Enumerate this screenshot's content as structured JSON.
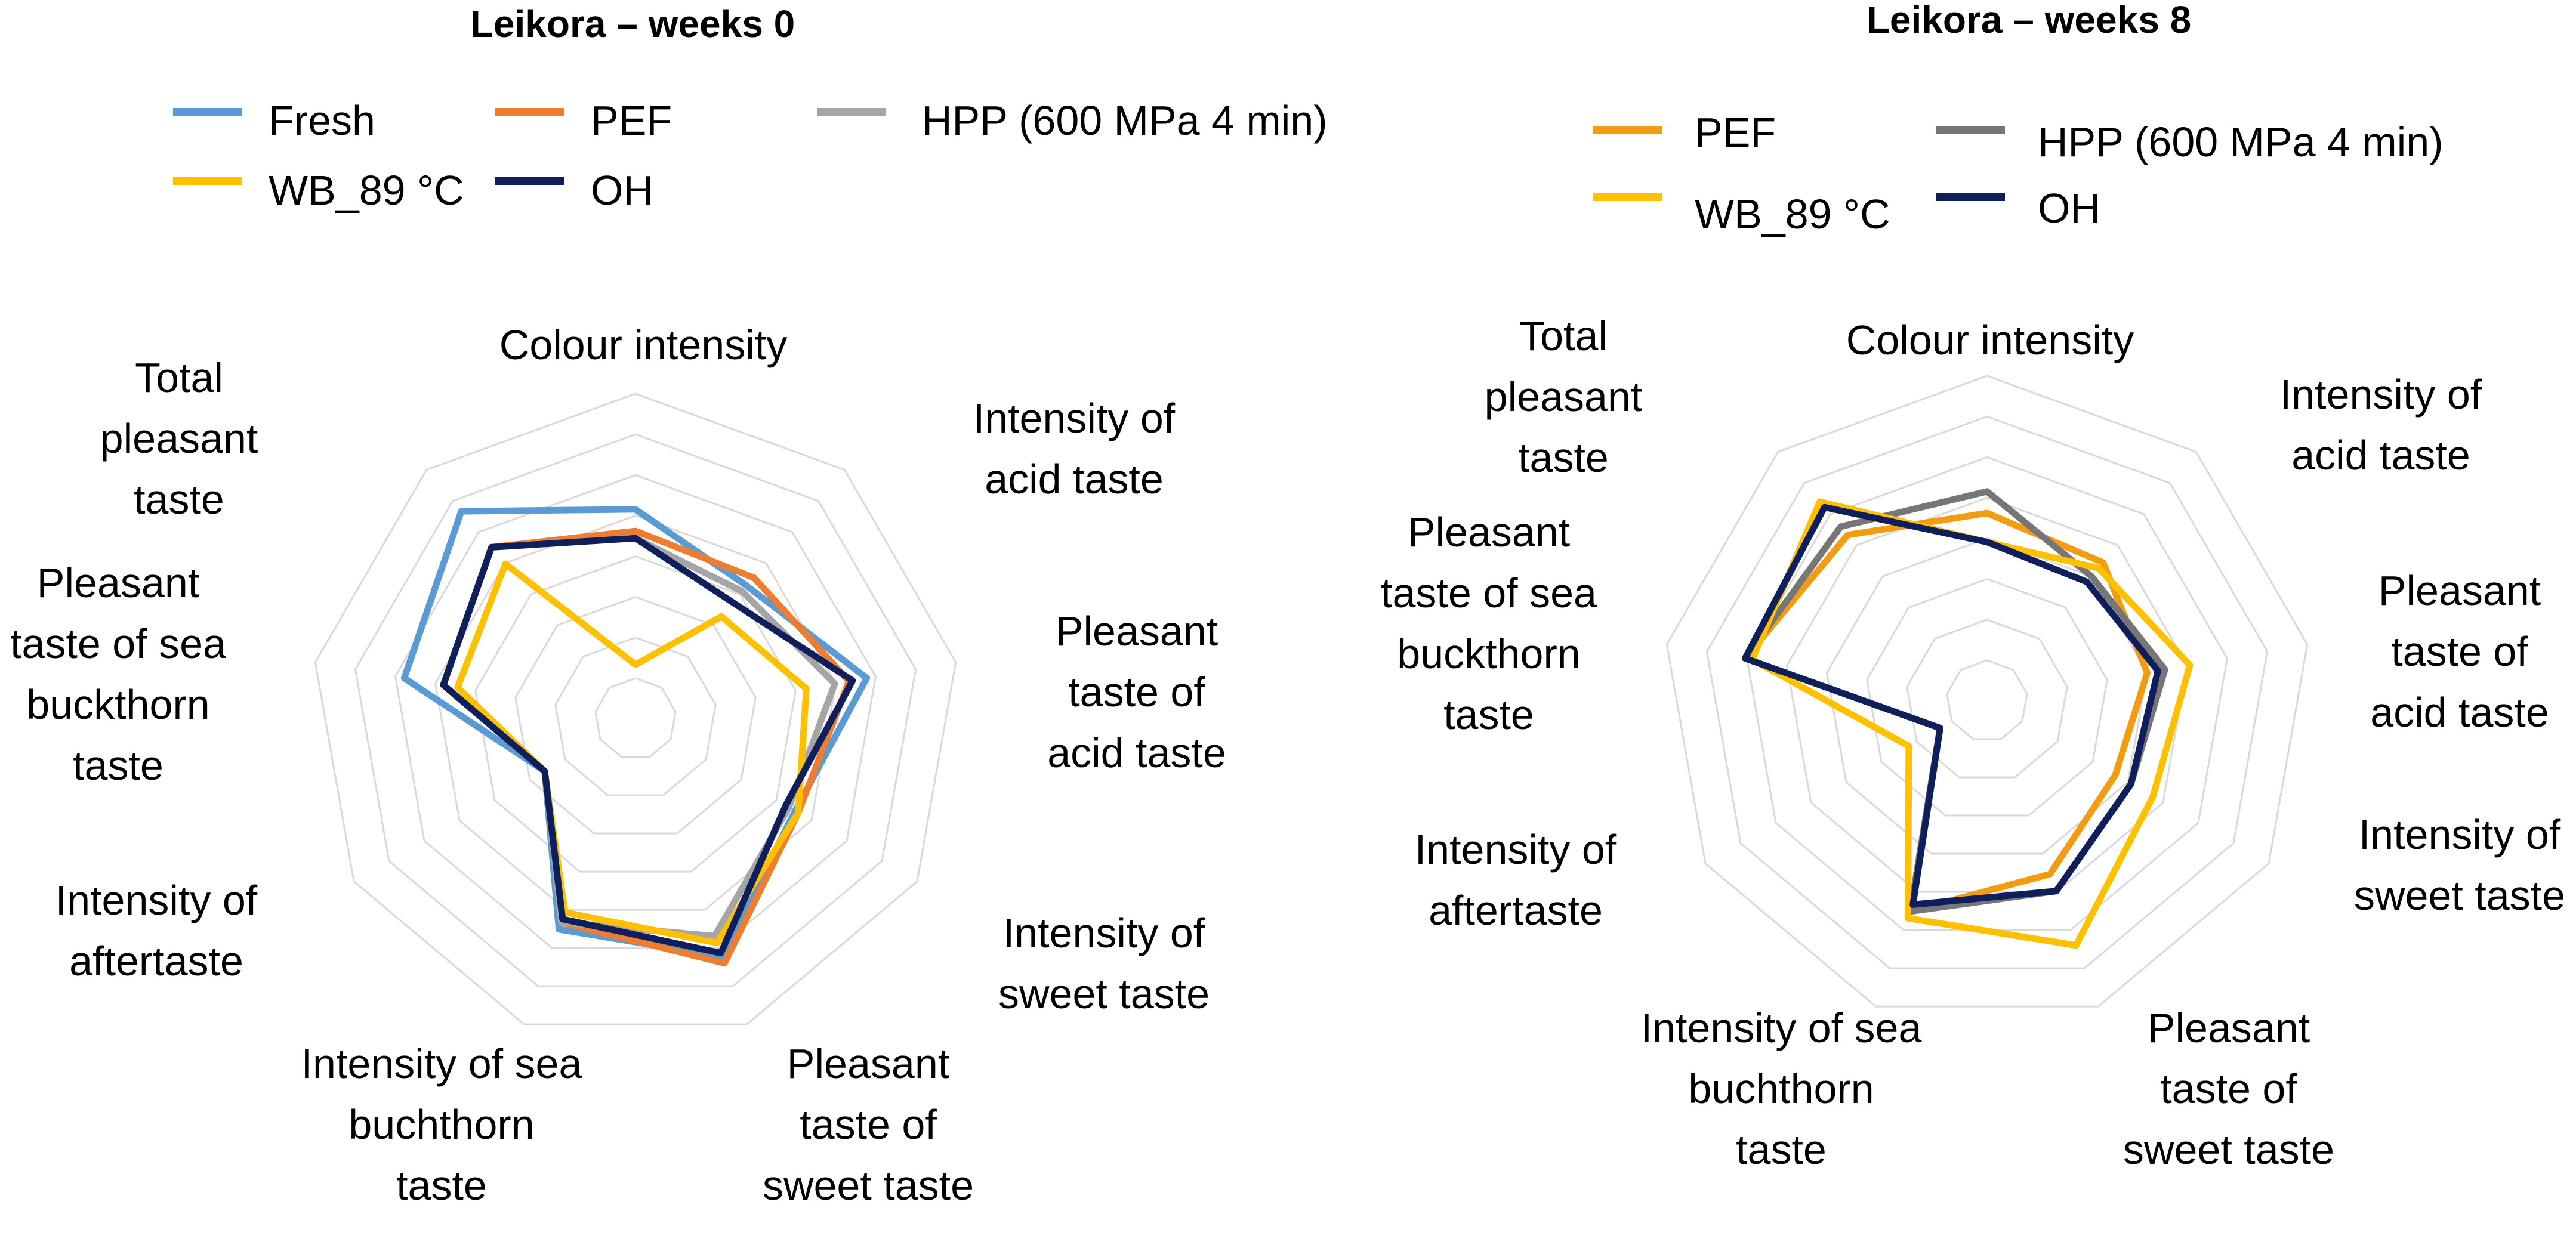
{
  "chart_data": [
    {
      "type": "radar",
      "title": "Leikora – weeks 0",
      "axes": [
        "Colour intensity",
        "Intensity of acid taste",
        "Pleasant taste of acid taste",
        "Intensity of sweet taste",
        "Pleasant taste of sweet taste",
        "Intensity of sea buchthorn taste",
        "Intensity of aftertaste",
        "Pleasant taste of sea buckthorn taste",
        "Total pleasant taste"
      ],
      "axis_label_lines": [
        [
          "Colour intensity"
        ],
        [
          "Intensity of",
          "acid taste"
        ],
        [
          "Pleasant",
          "taste of",
          "acid taste"
        ],
        [
          "Intensity of",
          "sweet taste"
        ],
        [
          "Pleasant",
          "taste of",
          "sweet taste"
        ],
        [
          "Intensity of sea",
          "buchthorn",
          "taste"
        ],
        [
          "Intensity of",
          "aftertaste"
        ],
        [
          "Pleasant",
          "taste of sea",
          "buckthorn",
          "taste"
        ],
        [
          "Total",
          "pleasant",
          "taste"
        ]
      ],
      "rmax": 9,
      "grid_levels": 8,
      "legend": {
        "rows": [
          [
            "Fresh",
            "PEF",
            "HPP (600 MPa 4 min)"
          ],
          [
            "WB_89 °C",
            "OH"
          ]
        ]
      },
      "series": [
        {
          "name": "Fresh",
          "color": "#5B9BD5",
          "values": [
            5.8,
            4.8,
            6.5,
            5.1,
            7.0,
            6.2,
            2.9,
            6.5,
            7.5
          ]
        },
        {
          "name": "PEF",
          "color": "#ED7D31",
          "values": [
            5.2,
            5.1,
            6.0,
            5.2,
            7.2,
            6.0,
            2.9,
            5.4,
            6.2
          ]
        },
        {
          "name": "HPP (600 MPa 4 min)",
          "color": "#A5A5A5",
          "values": [
            5.0,
            4.6,
            5.6,
            4.9,
            6.4,
            6.0,
            2.9,
            5.4,
            6.2
          ]
        },
        {
          "name": "WB_89 °C",
          "color": "#FFC000",
          "values": [
            1.5,
            3.7,
            4.8,
            5.2,
            6.6,
            5.7,
            2.9,
            5.0,
            5.6
          ]
        },
        {
          "name": "OH",
          "color": "#0F1F5C",
          "values": [
            5.0,
            4.2,
            6.1,
            4.8,
            6.9,
            5.9,
            2.9,
            5.4,
            6.2
          ]
        }
      ]
    },
    {
      "type": "radar",
      "title": "Leikora – weeks 8",
      "axes": [
        "Colour intensity",
        "Intensity of acid taste",
        "Pleasant taste of acid taste",
        "Intensity of sweet taste",
        "Pleasant taste of sweet taste",
        "Intensity of sea buchthorn taste",
        "Intensity of aftertaste",
        "Pleasant taste of sea buckthorn taste",
        "Total pleasant taste"
      ],
      "axis_label_lines": [
        [
          "Colour intensity"
        ],
        [
          "Intensity of",
          "acid taste"
        ],
        [
          "Pleasant",
          "taste of",
          "acid taste"
        ],
        [
          "Intensity of",
          "sweet taste"
        ],
        [
          "Pleasant",
          "taste of",
          "sweet taste"
        ],
        [
          "Intensity of sea",
          "buchthorn",
          "taste"
        ],
        [
          "Intensity of",
          "aftertaste"
        ],
        [
          "Pleasant",
          "taste of sea",
          "buckthorn",
          "taste"
        ],
        [
          "Total",
          "pleasant",
          "taste"
        ]
      ],
      "rmax": 9,
      "grid_levels": 8,
      "legend": {
        "rows": [
          [
            "PEF",
            "HPP (600 MPa 4 min)"
          ],
          [
            "WB_89 °C",
            "OH"
          ]
        ]
      },
      "series": [
        {
          "name": "PEF",
          "color": "#F39C12",
          "values": [
            5.2,
            5.0,
            4.5,
            4.1,
            5.1,
            6.2,
            1.5,
            6.8,
            6.0
          ]
        },
        {
          "name": "HPP (600 MPa 4 min)",
          "color": "#767676",
          "values": [
            5.8,
            4.5,
            5.0,
            4.6,
            5.6,
            6.2,
            1.5,
            6.8,
            6.3
          ]
        },
        {
          "name": "WB_89 °C",
          "color": "#FFC000",
          "values": [
            4.4,
            4.8,
            5.7,
            5.3,
            7.2,
            6.4,
            2.5,
            6.6,
            7.2
          ]
        },
        {
          "name": "OH",
          "color": "#0F1F5C",
          "values": [
            4.4,
            4.3,
            4.8,
            4.6,
            5.6,
            6.0,
            1.5,
            6.8,
            7.0
          ]
        }
      ]
    }
  ]
}
